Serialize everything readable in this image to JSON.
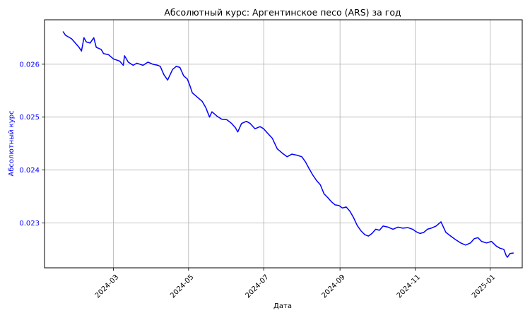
{
  "chart_data": {
    "type": "line",
    "title": "Абсолютный курс: Аргентинское песо (ARS) за год",
    "xlabel": "Дата",
    "ylabel": "Абсолютный курс",
    "x_range": [
      "2024-01-05",
      "2025-01-27"
    ],
    "ylim": [
      0.02215,
      0.02684
    ],
    "grid": true,
    "colors": {
      "line": "#0000ff",
      "ylabel": "#0000ff",
      "ytick_labels": "#0000ff"
    },
    "x_ticks": [
      "2024-03",
      "2024-05",
      "2024-07",
      "2024-09",
      "2024-11",
      "2025-01"
    ],
    "y_ticks": [
      "0.023",
      "0.024",
      "0.025",
      "0.026"
    ],
    "series": [
      {
        "points": [
          [
            "2024-01-20",
            0.02662
          ],
          [
            "2024-01-22",
            0.02655
          ],
          [
            "2024-01-24",
            0.02652
          ],
          [
            "2024-01-27",
            0.02648
          ],
          [
            "2024-01-30",
            0.0264
          ],
          [
            "2024-02-02",
            0.02632
          ],
          [
            "2024-02-04",
            0.02625
          ],
          [
            "2024-02-06",
            0.0265
          ],
          [
            "2024-02-08",
            0.02642
          ],
          [
            "2024-02-11",
            0.0264
          ],
          [
            "2024-02-14",
            0.0265
          ],
          [
            "2024-02-16",
            0.02632
          ],
          [
            "2024-02-20",
            0.02628
          ],
          [
            "2024-02-22",
            0.0262
          ],
          [
            "2024-02-26",
            0.02618
          ],
          [
            "2024-03-01",
            0.0261
          ],
          [
            "2024-03-06",
            0.02606
          ],
          [
            "2024-03-09",
            0.02598
          ],
          [
            "2024-03-10",
            0.02616
          ],
          [
            "2024-03-13",
            0.02604
          ],
          [
            "2024-03-17",
            0.02598
          ],
          [
            "2024-03-20",
            0.02602
          ],
          [
            "2024-03-25",
            0.02598
          ],
          [
            "2024-03-29",
            0.02604
          ],
          [
            "2024-04-02",
            0.026
          ],
          [
            "2024-04-06",
            0.02598
          ],
          [
            "2024-04-08",
            0.02596
          ],
          [
            "2024-04-11",
            0.0258
          ],
          [
            "2024-04-14",
            0.0257
          ],
          [
            "2024-04-18",
            0.0259
          ],
          [
            "2024-04-21",
            0.02596
          ],
          [
            "2024-04-24",
            0.02594
          ],
          [
            "2024-04-27",
            0.02578
          ],
          [
            "2024-04-30",
            0.02572
          ],
          [
            "2024-05-02",
            0.0256
          ],
          [
            "2024-05-04",
            0.02546
          ],
          [
            "2024-05-08",
            0.02538
          ],
          [
            "2024-05-12",
            0.0253
          ],
          [
            "2024-05-15",
            0.02518
          ],
          [
            "2024-05-18",
            0.025
          ],
          [
            "2024-05-20",
            0.0251
          ],
          [
            "2024-05-24",
            0.02502
          ],
          [
            "2024-05-28",
            0.02496
          ],
          [
            "2024-06-01",
            0.02495
          ],
          [
            "2024-06-05",
            0.02488
          ],
          [
            "2024-06-08",
            0.0248
          ],
          [
            "2024-06-10",
            0.02472
          ],
          [
            "2024-06-13",
            0.02488
          ],
          [
            "2024-06-17",
            0.02492
          ],
          [
            "2024-06-20",
            0.02488
          ],
          [
            "2024-06-24",
            0.02478
          ],
          [
            "2024-06-28",
            0.02482
          ],
          [
            "2024-07-01",
            0.02478
          ],
          [
            "2024-07-04",
            0.0247
          ],
          [
            "2024-07-08",
            0.0246
          ],
          [
            "2024-07-12",
            0.0244
          ],
          [
            "2024-07-16",
            0.02432
          ],
          [
            "2024-07-20",
            0.02425
          ],
          [
            "2024-07-24",
            0.0243
          ],
          [
            "2024-07-28",
            0.02428
          ],
          [
            "2024-08-01",
            0.02425
          ],
          [
            "2024-08-04",
            0.02415
          ],
          [
            "2024-08-07",
            0.02402
          ],
          [
            "2024-08-10",
            0.0239
          ],
          [
            "2024-08-13",
            0.0238
          ],
          [
            "2024-08-16",
            0.02372
          ],
          [
            "2024-08-19",
            0.02355
          ],
          [
            "2024-08-22",
            0.02348
          ],
          [
            "2024-08-25",
            0.0234
          ],
          [
            "2024-08-28",
            0.02334
          ],
          [
            "2024-08-31",
            0.02333
          ],
          [
            "2024-09-03",
            0.02328
          ],
          [
            "2024-09-06",
            0.0233
          ],
          [
            "2024-09-09",
            0.02322
          ],
          [
            "2024-09-12",
            0.0231
          ],
          [
            "2024-09-15",
            0.02295
          ],
          [
            "2024-09-18",
            0.02285
          ],
          [
            "2024-09-21",
            0.02278
          ],
          [
            "2024-09-24",
            0.02275
          ],
          [
            "2024-09-27",
            0.0228
          ],
          [
            "2024-09-30",
            0.02288
          ],
          [
            "2024-10-03",
            0.02286
          ],
          [
            "2024-10-06",
            0.02294
          ],
          [
            "2024-10-10",
            0.02292
          ],
          [
            "2024-10-14",
            0.02288
          ],
          [
            "2024-10-18",
            0.02292
          ],
          [
            "2024-10-22",
            0.0229
          ],
          [
            "2024-10-26",
            0.02291
          ],
          [
            "2024-10-30",
            0.02288
          ],
          [
            "2024-11-02",
            0.02283
          ],
          [
            "2024-11-05",
            0.0228
          ],
          [
            "2024-11-08",
            0.02282
          ],
          [
            "2024-11-11",
            0.02288
          ],
          [
            "2024-11-14",
            0.0229
          ],
          [
            "2024-11-18",
            0.02294
          ],
          [
            "2024-11-22",
            0.02302
          ],
          [
            "2024-11-26",
            0.02282
          ],
          [
            "2024-11-30",
            0.02275
          ],
          [
            "2024-12-04",
            0.02268
          ],
          [
            "2024-12-08",
            0.02262
          ],
          [
            "2024-12-12",
            0.02258
          ],
          [
            "2024-12-16",
            0.02262
          ],
          [
            "2024-12-19",
            0.0227
          ],
          [
            "2024-12-22",
            0.02272
          ],
          [
            "2024-12-25",
            0.02265
          ],
          [
            "2024-12-29",
            0.02262
          ],
          [
            "2025-01-02",
            0.02265
          ],
          [
            "2025-01-06",
            0.02256
          ],
          [
            "2025-01-09",
            0.02252
          ],
          [
            "2025-01-12",
            0.0225
          ],
          [
            "2025-01-14",
            0.02238
          ],
          [
            "2025-01-15",
            0.02235
          ],
          [
            "2025-01-17",
            0.02242
          ],
          [
            "2025-01-20",
            0.02243
          ]
        ]
      }
    ]
  }
}
